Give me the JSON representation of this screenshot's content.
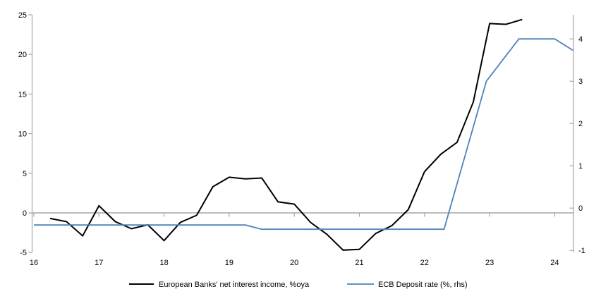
{
  "chart_data": {
    "type": "line",
    "title": "",
    "grid": "zero-line-only",
    "legend_position": "bottom-center",
    "x_axis": {
      "tick_years": [
        16,
        17,
        18,
        19,
        20,
        21,
        22,
        23,
        24
      ],
      "tick_labels": [
        "16",
        "17",
        "18",
        "19",
        "20",
        "21",
        "22",
        "23",
        "24"
      ],
      "range": [
        15.97,
        24.29
      ]
    },
    "y_axis_left": {
      "tick_values": [
        -5,
        0,
        5,
        10,
        15,
        20,
        25
      ],
      "tick_labels": [
        "-5",
        "0",
        "5",
        "10",
        "15",
        "20",
        "25"
      ],
      "range": [
        -5,
        25
      ]
    },
    "y_axis_right": {
      "tick_values": [
        -1,
        0,
        1,
        2,
        3,
        4
      ],
      "tick_labels": [
        "-1",
        "0",
        "1",
        "2",
        "3",
        "4"
      ],
      "range": [
        -1,
        4.6
      ]
    },
    "series": [
      {
        "name": "European Banks' net interest income, %oya",
        "axis": "left",
        "color": "#000000",
        "stroke_width": 2,
        "points": [
          [
            16.25,
            -0.7
          ],
          [
            16.5,
            -1.1
          ],
          [
            16.75,
            -2.9
          ],
          [
            17.0,
            0.9
          ],
          [
            17.25,
            -1.1
          ],
          [
            17.5,
            -2.0
          ],
          [
            17.75,
            -1.5
          ],
          [
            18.0,
            -3.5
          ],
          [
            18.25,
            -1.2
          ],
          [
            18.5,
            -0.3
          ],
          [
            18.75,
            3.3
          ],
          [
            19.0,
            4.5
          ],
          [
            19.25,
            4.3
          ],
          [
            19.5,
            4.4
          ],
          [
            19.75,
            1.4
          ],
          [
            20.0,
            1.1
          ],
          [
            20.25,
            -1.2
          ],
          [
            20.5,
            -2.7
          ],
          [
            20.75,
            -4.7
          ],
          [
            21.0,
            -4.6
          ],
          [
            21.25,
            -2.6
          ],
          [
            21.5,
            -1.6
          ],
          [
            21.75,
            0.4
          ],
          [
            22.0,
            5.2
          ],
          [
            22.25,
            7.4
          ],
          [
            22.5,
            8.9
          ],
          [
            22.75,
            14.0
          ],
          [
            23.0,
            23.9
          ],
          [
            23.25,
            23.8
          ],
          [
            23.5,
            24.4
          ]
        ]
      },
      {
        "name": "ECB Deposit rate (%, rhs)",
        "axis": "right",
        "color": "#4f81bd",
        "stroke_width": 1.8,
        "points": [
          [
            16.0,
            -0.4
          ],
          [
            19.25,
            -0.4
          ],
          [
            19.5,
            -0.5
          ],
          [
            22.3,
            -0.5
          ],
          [
            22.95,
            3.0
          ],
          [
            23.45,
            4.0
          ],
          [
            24.0,
            4.0
          ],
          [
            24.28,
            3.73
          ]
        ]
      }
    ]
  },
  "colors": {
    "axis": "#a6a6a6",
    "zero_line": "#a6a6a6",
    "text": "#000000",
    "background": "#ffffff"
  }
}
